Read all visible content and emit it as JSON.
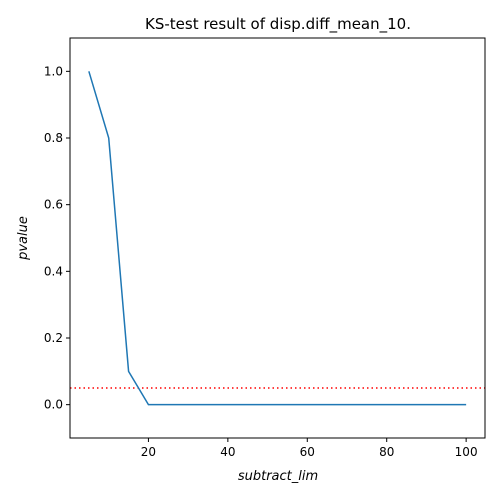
{
  "chart_data": {
    "type": "line",
    "title": "KS-test result of disp.diff_mean_10.",
    "xlabel": "subtract_lim",
    "ylabel": "pvalue",
    "xlim": [
      0.25,
      104.75
    ],
    "ylim": [
      -0.1,
      1.1
    ],
    "xticks": [
      20,
      40,
      60,
      80,
      100
    ],
    "yticks": [
      0.0,
      0.2,
      0.4,
      0.6,
      0.8,
      1.0
    ],
    "xtick_labels": [
      "20",
      "40",
      "60",
      "80",
      "100"
    ],
    "ytick_labels": [
      "0.0",
      "0.2",
      "0.4",
      "0.6",
      "0.8",
      "1.0"
    ],
    "grid": false,
    "series": [
      {
        "color": "#1f77b4",
        "x": [
          5,
          10,
          15,
          20,
          25,
          30,
          35,
          40,
          45,
          50,
          55,
          60,
          65,
          70,
          75,
          80,
          85,
          90,
          95,
          100
        ],
        "y": [
          1.0,
          0.8,
          0.1,
          0.0,
          0.0,
          0.0,
          0.0,
          0.0,
          0.0,
          0.0,
          0.0,
          0.0,
          0.0,
          0.0,
          0.0,
          0.0,
          0.0,
          0.0,
          0.0,
          0.0
        ]
      }
    ],
    "threshold": {
      "y": 0.05,
      "color": "#ff0000",
      "style": "dotted"
    }
  }
}
